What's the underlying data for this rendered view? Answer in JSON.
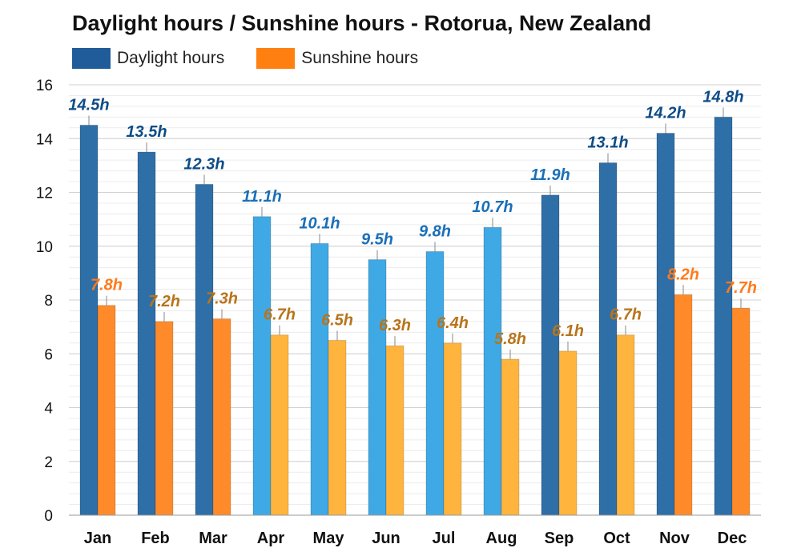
{
  "chart_data": {
    "type": "bar",
    "title": "Daylight hours / Sunshine hours - Rotorua, New Zealand",
    "categories": [
      "Jan",
      "Feb",
      "Mar",
      "Apr",
      "May",
      "Jun",
      "Jul",
      "Aug",
      "Sep",
      "Oct",
      "Nov",
      "Dec"
    ],
    "series": [
      {
        "name": "Daylight hours",
        "values": [
          14.5,
          13.5,
          12.3,
          11.1,
          10.1,
          9.5,
          9.8,
          10.7,
          11.9,
          13.1,
          14.2,
          14.8
        ],
        "labels": [
          "14.5h",
          "13.5h",
          "12.3h",
          "11.1h",
          "10.1h",
          "9.5h",
          "9.8h",
          "10.7h",
          "11.9h",
          "13.1h",
          "14.2h",
          "14.8h"
        ],
        "color": "#1f5c99"
      },
      {
        "name": "Sunshine hours",
        "values": [
          7.8,
          7.2,
          7.3,
          6.7,
          6.5,
          6.3,
          6.4,
          5.8,
          6.1,
          6.7,
          8.2,
          7.7
        ],
        "labels": [
          "7.8h",
          "7.2h",
          "7.3h",
          "6.7h",
          "6.5h",
          "6.3h",
          "6.4h",
          "5.8h",
          "6.1h",
          "6.7h",
          "8.2h",
          "7.7h"
        ],
        "color": "#ff7f27"
      }
    ],
    "ylim": [
      0,
      16
    ],
    "yticks": [
      "0",
      "2",
      "4",
      "6",
      "8",
      "10",
      "12",
      "14",
      "16"
    ],
    "grid": true,
    "legend": "top-left",
    "xlabel": "",
    "ylabel": ""
  },
  "colors": {
    "daylight_bar": [
      "#2f6fa8",
      "#3a86c8",
      "#3fa9e6"
    ],
    "sunshine_bar": [
      "#ff8a2a",
      "#ffa43a",
      "#ffb43e"
    ],
    "daylight_label": [
      "#0e4c87",
      "#1a6fb8"
    ],
    "sunshine_label": [
      "#ff7a1a",
      "#b8741a"
    ],
    "legend_daylight": "#1f5c99",
    "legend_sunshine": "#ff7f11"
  }
}
